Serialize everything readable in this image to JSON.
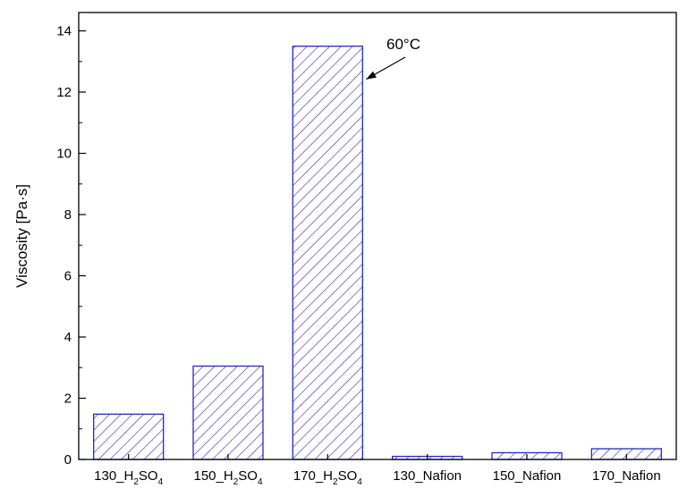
{
  "chart_data": {
    "type": "bar",
    "categories": [
      {
        "base": "130_H",
        "sub1": "2",
        "mid": "SO",
        "sub2": "4"
      },
      {
        "base": "150_H",
        "sub1": "2",
        "mid": "SO",
        "sub2": "4"
      },
      {
        "base": "170_H",
        "sub1": "2",
        "mid": "SO",
        "sub2": "4"
      },
      {
        "base": "130_Nafion"
      },
      {
        "base": "150_Nafion"
      },
      {
        "base": "170_Nafion"
      }
    ],
    "values": [
      1.48,
      3.05,
      13.5,
      0.1,
      0.22,
      0.35
    ],
    "ylabel": "Viscosity [Pa·s]",
    "xlabel": "",
    "ylim": [
      0,
      14.6
    ],
    "yticks": [
      0,
      2,
      4,
      6,
      8,
      10,
      12,
      14
    ],
    "grid": false,
    "annotation": {
      "text": "60°C",
      "target_category_index": 2
    },
    "colors": {
      "bar_stroke": "#2828c8",
      "hatch": "#2828c8",
      "axis": "#000000"
    }
  }
}
